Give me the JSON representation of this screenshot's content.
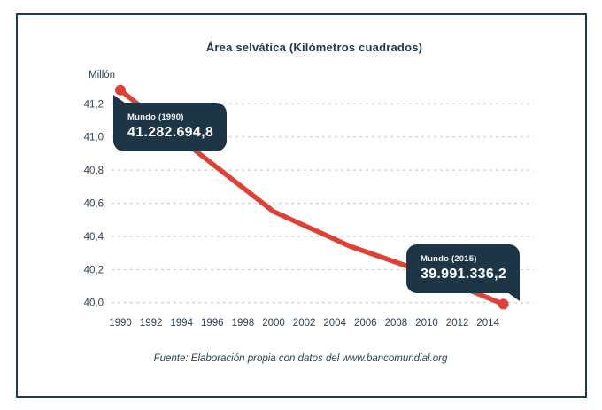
{
  "frame": {
    "border_color": "#1e3a4d",
    "background": "#ffffff"
  },
  "chart_data": {
    "type": "line",
    "title": "Área selvática (Kilómetros cuadrados)",
    "unit_label": "Millón",
    "source_note": "Fuente: Elaboración propia con datos del www.bancomundial.org",
    "series_name": "Mundo",
    "x": [
      1990,
      1991,
      1992,
      1993,
      1994,
      1995,
      1996,
      1997,
      1998,
      1999,
      2000,
      2001,
      2002,
      2003,
      2004,
      2005,
      2006,
      2007,
      2008,
      2009,
      2010,
      2011,
      2012,
      2013,
      2014,
      2015
    ],
    "values": [
      41.283,
      41.208,
      41.134,
      41.059,
      40.985,
      40.91,
      40.838,
      40.766,
      40.694,
      40.622,
      40.55,
      40.508,
      40.466,
      40.424,
      40.382,
      40.34,
      40.308,
      40.276,
      40.244,
      40.212,
      40.18,
      40.142,
      40.104,
      40.067,
      40.029,
      39.991
    ],
    "values_unit": "million km²",
    "endpoint_values_km2": {
      "1990": "41.282.694,8",
      "2015": "39.991.336,2"
    },
    "x_tick_years": [
      1990,
      1992,
      1994,
      1996,
      1998,
      2000,
      2002,
      2004,
      2006,
      2008,
      2010,
      2012,
      2014
    ],
    "x_tick_labels": [
      "1990",
      "1992",
      "1994",
      "1996",
      "1998",
      "2000",
      "2002",
      "2004",
      "2006",
      "2008",
      "2010",
      "2012",
      "2014"
    ],
    "y_ticks": [
      41.2,
      41.0,
      40.8,
      40.6,
      40.4,
      40.2,
      40.0
    ],
    "y_tick_labels": [
      "41,2",
      "41,0",
      "40,8",
      "40,6",
      "40,4",
      "40,2",
      "40,0"
    ],
    "xlim": [
      1990,
      2015
    ],
    "ylim": [
      39.95,
      41.35
    ],
    "grid": "horizontal dashed",
    "legend": "none",
    "line_color": "#de4237",
    "grid_color": "#c9cdd1",
    "tick_color": "#2e4154",
    "tooltip_bg": "#1e3546",
    "tooltips": [
      {
        "label": "Mundo (1990)",
        "value": "41.282.694,8"
      },
      {
        "label": "Mundo (2015)",
        "value": "39.991.336,2"
      }
    ]
  }
}
